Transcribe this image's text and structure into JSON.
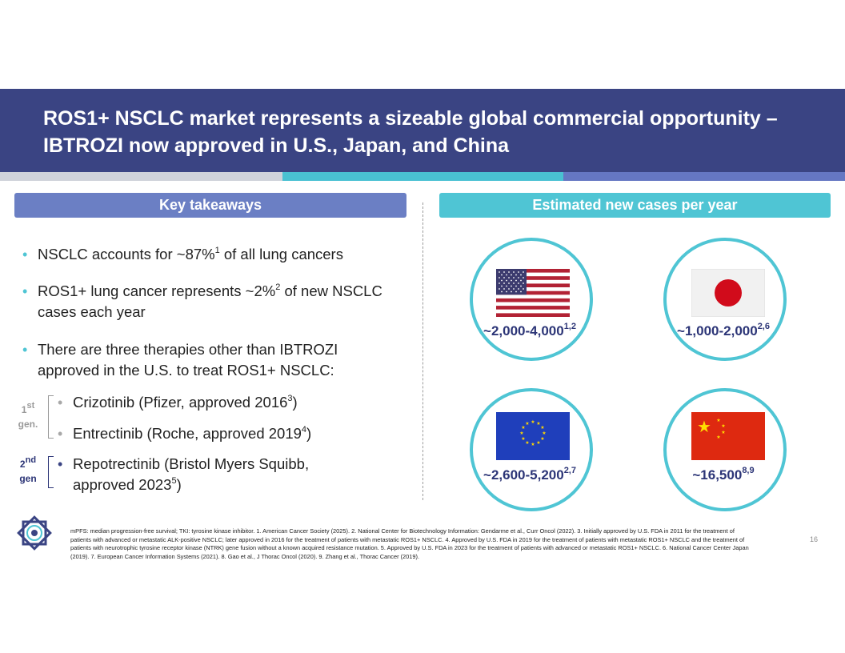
{
  "title": {
    "line1": "ROS1+ NSCLC market represents a sizeable global commercial opportunity –",
    "line2": "IBTROZI now approved in U.S., Japan, and China"
  },
  "colors": {
    "title_band": "#3a4483",
    "accent_teal": "#4fc5d4",
    "accent_periwinkle": "#6b7fc4",
    "dark_navy": "#2c3577"
  },
  "left_panel": {
    "header": "Key takeaways",
    "bullet1": {
      "pre": "NSCLC accounts for ~87%",
      "sup": "1",
      "post": " of all lung cancers"
    },
    "bullet2": {
      "pre": "ROS1+ lung cancer represents ~2%",
      "sup": "2",
      "post": " of new NSCLC",
      "line2": "cases each year"
    },
    "bullet3": {
      "line1": "There are three therapies other than IBTROZI",
      "line2": "approved in the U.S. to treat ROS1+ NSCLC:"
    },
    "gen1": {
      "label_num": "1",
      "label_sup": "st",
      "label_word": "gen."
    },
    "gen2": {
      "label_num": "2",
      "label_sup": "nd",
      "label_word": "gen"
    },
    "therapy1": {
      "pre": "Crizotinib (Pfizer, approved 2016",
      "sup": "3",
      "post": ")"
    },
    "therapy2": {
      "pre": "Entrectinib (Roche, approved 2019",
      "sup": "4",
      "post": ")"
    },
    "therapy3": {
      "line1": "Repotrectinib (Bristol Myers Squibb,",
      "pre": "approved 2023",
      "sup": "5",
      "post": ")"
    }
  },
  "right_panel": {
    "header": "Estimated new cases per year",
    "us": {
      "icon": "us-flag-icon",
      "value": "~2,000-4,000",
      "sup": "1,2"
    },
    "japan": {
      "icon": "japan-flag-icon",
      "value": "~1,000-2,000",
      "sup": "2,6"
    },
    "eu": {
      "icon": "eu-flag-icon",
      "value": "~2,600-5,200",
      "sup": "2,7"
    },
    "china": {
      "icon": "china-flag-icon",
      "value": "~16,500",
      "sup": "8,9"
    }
  },
  "footnote": "mPFS: median progression-free survival; TKI: tyrosine kinase inhibitor. 1. American Cancer Society (2025). 2. National Center for Biotechnology Information: Gendarme et al., Curr Oncol (2022). 3. Initially approved by U.S. FDA in 2011 for the treatment of patients with advanced or metastatic ALK-positive NSCLC; later approved in 2016 for the treatment of patients with metastatic ROS1+ NSCLC. 4. Approved by U.S. FDA in 2019 for the treatment of patients with metastatic ROS1+ NSCLC and the treatment of patients with neurotrophic tyrosine receptor kinase (NTRK) gene fusion without a known acquired resistance mutation. 5. Approved by U.S. FDA in 2023 for the treatment of patients with advanced or metastatic ROS1+ NSCLC. 6. National Cancer Center Japan (2019). 7. European Cancer Information Systems (2021). 8. Gao et al., J Thorac Oncol (2020). 9. Zhang et al., Thorac Cancer (2019).",
  "page_number": "16"
}
